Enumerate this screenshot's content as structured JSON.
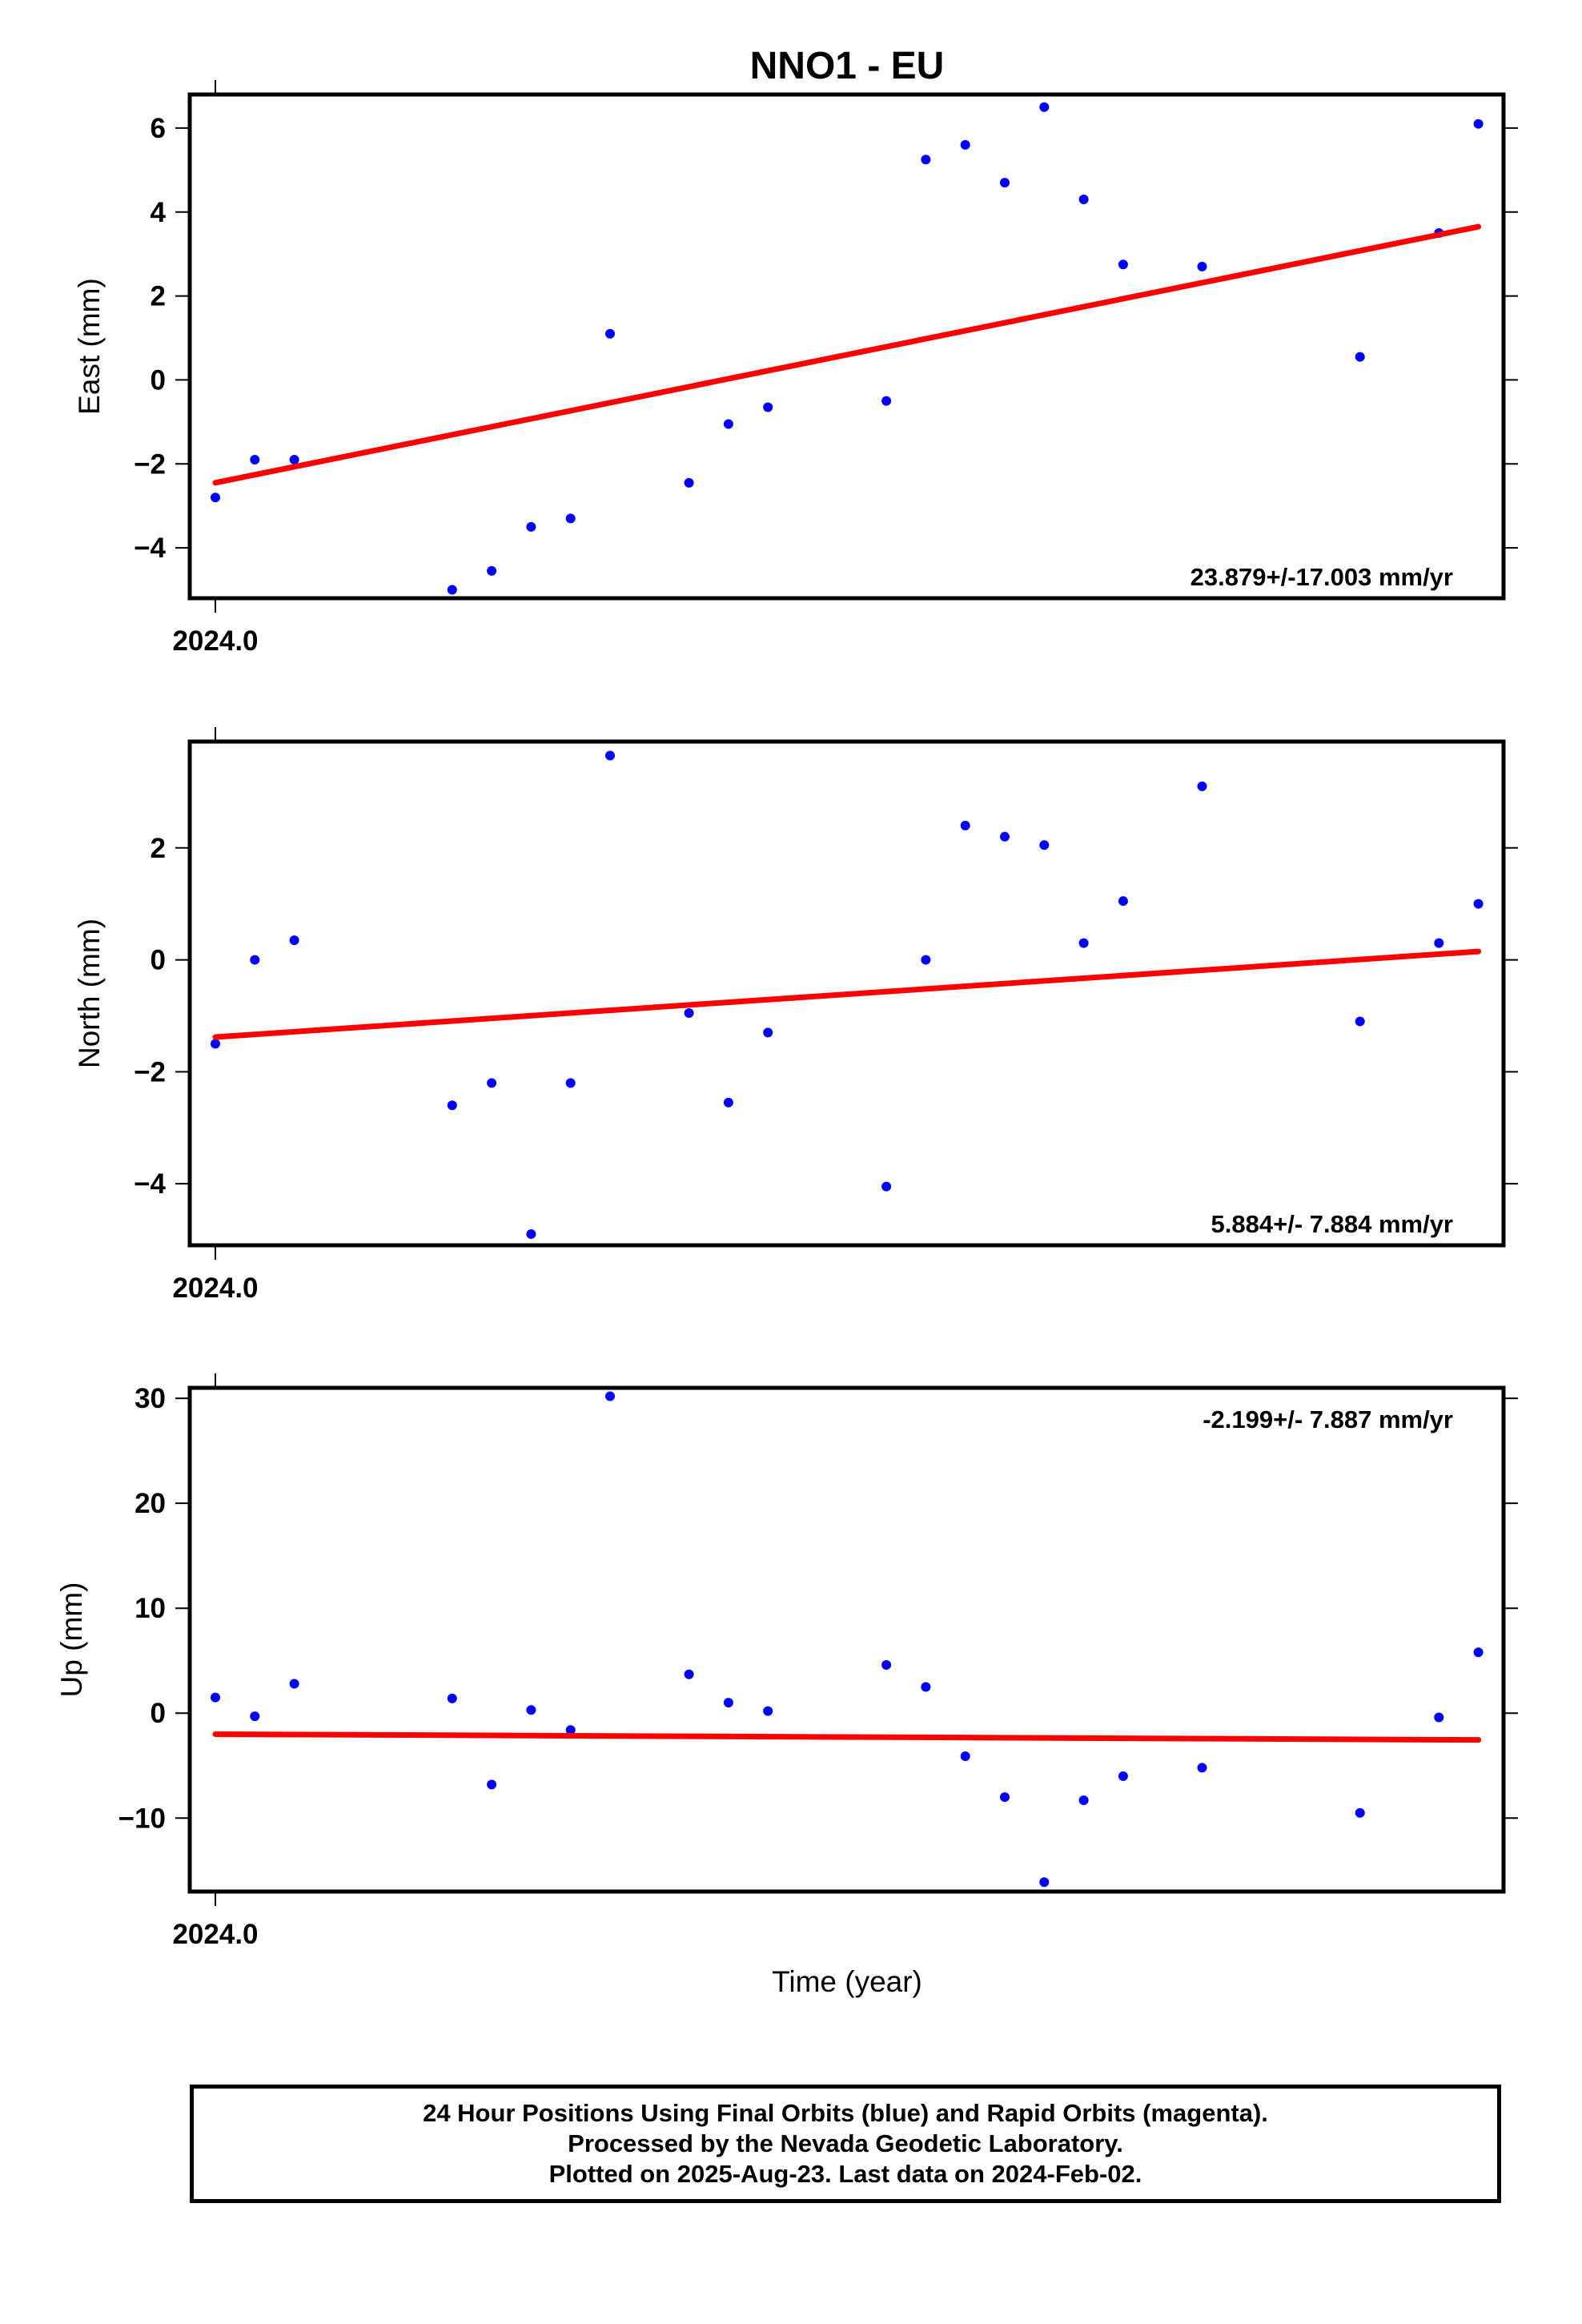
{
  "chart_data": {
    "title": "NNO1 - EU",
    "type": "scatter",
    "panels": [
      {
        "name": "east",
        "ylabel": "East (mm)",
        "xtick_label": "2024.0",
        "rate_label": "23.879+/-17.003 mm/yr",
        "rate_position": "bottom-right",
        "ylim": [
          -5.2,
          6.8
        ],
        "yticks": [
          -4,
          -2,
          0,
          2,
          4,
          6
        ],
        "points_x": [
          0,
          1,
          2,
          6,
          7,
          8,
          9,
          10,
          12,
          13,
          14,
          17,
          18,
          19,
          20,
          21,
          22,
          23,
          25,
          29,
          31,
          32
        ],
        "points_y": [
          -2.8,
          -1.9,
          -1.9,
          -5.0,
          -4.55,
          -3.5,
          -3.3,
          1.1,
          -2.45,
          -1.05,
          -0.65,
          -0.5,
          5.25,
          5.6,
          4.7,
          6.5,
          4.3,
          2.75,
          2.7,
          0.55,
          3.5,
          6.1
        ],
        "trend": {
          "x": [
            0,
            32
          ],
          "y": [
            -2.45,
            3.65
          ]
        }
      },
      {
        "name": "north",
        "ylabel": "North (mm)",
        "xtick_label": "2024.0",
        "rate_label": "5.884+/- 7.884 mm/yr",
        "rate_position": "bottom-right",
        "ylim": [
          -5.1,
          3.9
        ],
        "yticks": [
          -4,
          -2,
          0,
          2
        ],
        "points_x": [
          0,
          1,
          2,
          6,
          7,
          8,
          9,
          10,
          12,
          13,
          14,
          17,
          18,
          19,
          20,
          21,
          22,
          23,
          25,
          29,
          31,
          32
        ],
        "points_y": [
          -1.5,
          0.0,
          0.35,
          -2.6,
          -2.2,
          -4.9,
          -2.2,
          3.65,
          -0.95,
          -2.55,
          -1.3,
          -4.05,
          0.0,
          2.4,
          2.2,
          2.05,
          0.3,
          1.05,
          3.1,
          -1.1,
          0.3,
          1.0
        ],
        "trend": {
          "x": [
            0,
            32
          ],
          "y": [
            -1.38,
            0.15
          ]
        }
      },
      {
        "name": "up",
        "ylabel": "Up (mm)",
        "xtick_label": "2024.0",
        "rate_label": "-2.199+/- 7.887 mm/yr",
        "rate_position": "top-right",
        "ylim": [
          -17,
          31
        ],
        "yticks": [
          -10,
          0,
          10,
          20,
          30
        ],
        "points_x": [
          0,
          1,
          2,
          6,
          7,
          8,
          9,
          10,
          12,
          13,
          14,
          17,
          18,
          19,
          20,
          21,
          22,
          23,
          25,
          29,
          31,
          32
        ],
        "points_y": [
          1.5,
          -0.3,
          2.8,
          1.4,
          -6.8,
          0.3,
          -1.6,
          30.2,
          3.7,
          1.0,
          0.2,
          4.6,
          2.5,
          -4.1,
          -8.0,
          -16.1,
          -8.3,
          -6.0,
          -5.2,
          -9.5,
          -0.4,
          5.8
        ],
        "trend": {
          "x": [
            0,
            32
          ],
          "y": [
            -2.0,
            -2.55
          ]
        }
      }
    ],
    "xlabel": "Time (year)",
    "x_unit": "days since 2024.0",
    "colors": {
      "points": "#0000ff",
      "trend": "#ff0000",
      "frame": "#000000"
    }
  },
  "footer": {
    "line1": "24 Hour Positions Using Final Orbits (blue) and Rapid Orbits (magenta).",
    "line2": "Processed by the Nevada Geodetic Laboratory.",
    "line3": "Plotted on 2025-Aug-23. Last data on 2024-Feb-02."
  }
}
